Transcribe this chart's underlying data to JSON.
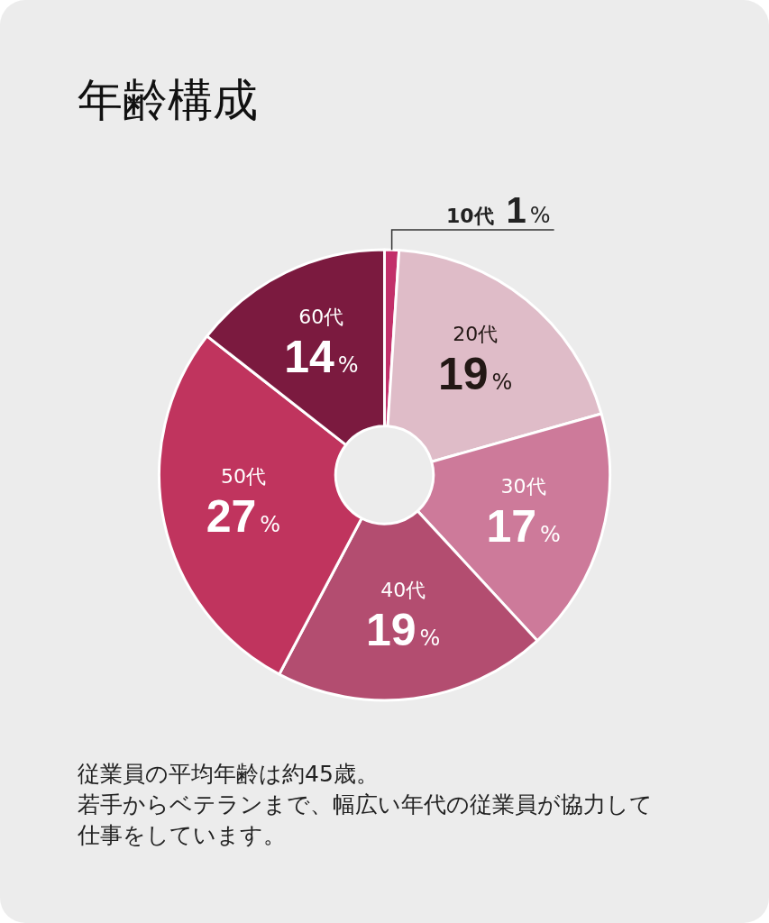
{
  "chart_data": {
    "type": "donut",
    "title": "年齢構成",
    "categories": [
      "10代",
      "20代",
      "30代",
      "40代",
      "50代",
      "60代"
    ],
    "values": [
      1,
      19,
      17,
      19,
      27,
      14
    ],
    "value_labels": [
      "1%",
      "19%",
      "17%",
      "19%",
      "27%",
      "14%"
    ],
    "colors": [
      "#c2306a",
      "#dfbcc8",
      "#cd7a9a",
      "#b34d70",
      "#c0345e",
      "#7b1a3f"
    ],
    "legend": false,
    "annotations": [
      "従業員の平均年齢は約45歳。",
      "若手からベテランまで、幅広い年代の従業員が協力して仕事をしています。"
    ]
  }
}
